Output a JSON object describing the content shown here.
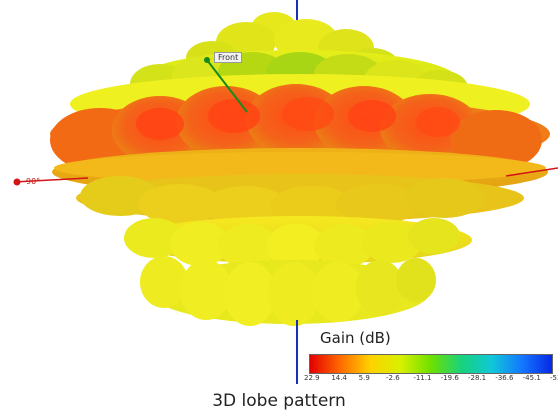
{
  "diagram": {
    "front_label": "Front",
    "axis_90_label": "90°",
    "caption": "3D lobe pattern"
  },
  "legend": {
    "title": "Gain (dB)",
    "ticks": [
      "22.9",
      "14.4",
      "5.9",
      "-2.6",
      "-11.1",
      "-19.6",
      "-28.1",
      "-36.6",
      "-45.1",
      "-53.6"
    ],
    "gradient_colors": [
      "#e40000",
      "#ff6a00",
      "#ffd200",
      "#d8f000",
      "#6ee000",
      "#18d27a",
      "#10c8d8",
      "#1478ff",
      "#0828e6"
    ]
  }
}
